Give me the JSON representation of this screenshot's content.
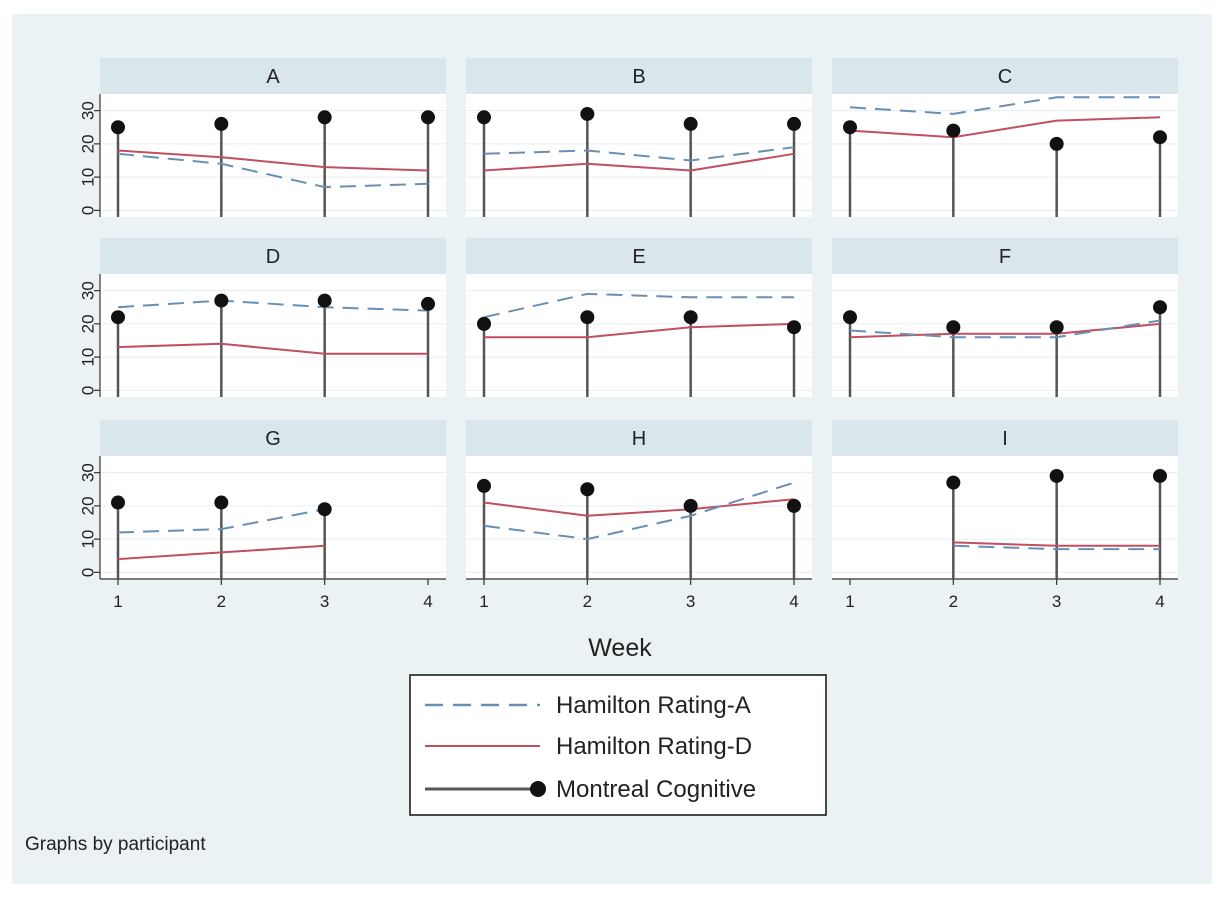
{
  "chart_data": {
    "type": "line",
    "note": "Graphs by participant",
    "xlabel": "Week",
    "x": [
      1,
      2,
      3,
      4
    ],
    "x_ticks": [
      "1",
      "2",
      "3",
      "4"
    ],
    "ylim": [
      -2,
      35
    ],
    "y_tick_values": [
      0,
      10,
      20,
      30
    ],
    "y_tick_labels": [
      "0",
      "10",
      "20",
      "30"
    ],
    "grid": true,
    "legend_position": "bottom-center",
    "colors": {
      "outer_background": "#eaf2f3",
      "plot_background": "#ffffff",
      "strip_background": "#d9e6eb",
      "hamilton_a": "#6a8fb5",
      "hamilton_d": "#c0505f",
      "montreal": "#555555",
      "marker": "#111111"
    },
    "legend": [
      {
        "label": "Hamilton Rating-A",
        "key": "hamilton_a",
        "style": "dashed"
      },
      {
        "label": "Hamilton Rating-D",
        "key": "hamilton_d",
        "style": "solid"
      },
      {
        "label": "Montreal Cognitive",
        "key": "montreal",
        "style": "spike-dot"
      }
    ],
    "panels": [
      {
        "name": "A",
        "hamilton_a": [
          17,
          14,
          7,
          8
        ],
        "hamilton_d": [
          18,
          16,
          13,
          12
        ],
        "montreal": [
          25,
          26,
          28,
          28
        ]
      },
      {
        "name": "B",
        "hamilton_a": [
          17,
          18,
          15,
          19
        ],
        "hamilton_d": [
          12,
          14,
          12,
          17
        ],
        "montreal": [
          28,
          29,
          26,
          26
        ]
      },
      {
        "name": "C",
        "hamilton_a": [
          31,
          29,
          34,
          34
        ],
        "hamilton_d": [
          24,
          22,
          27,
          28
        ],
        "montreal": [
          25,
          24,
          20,
          22
        ]
      },
      {
        "name": "D",
        "hamilton_a": [
          25,
          27,
          25,
          24
        ],
        "hamilton_d": [
          13,
          14,
          11,
          11
        ],
        "montreal": [
          22,
          27,
          27,
          26
        ]
      },
      {
        "name": "E",
        "hamilton_a": [
          22,
          29,
          28,
          28
        ],
        "hamilton_d": [
          16,
          16,
          19,
          20
        ],
        "montreal": [
          20,
          22,
          22,
          19
        ]
      },
      {
        "name": "F",
        "hamilton_a": [
          18,
          16,
          16,
          21
        ],
        "hamilton_d": [
          16,
          17,
          17,
          20
        ],
        "montreal": [
          22,
          19,
          19,
          25
        ]
      },
      {
        "name": "G",
        "hamilton_a": [
          12,
          13,
          19,
          null
        ],
        "hamilton_d": [
          4,
          6,
          8,
          null
        ],
        "montreal": [
          21,
          21,
          19,
          null
        ]
      },
      {
        "name": "H",
        "hamilton_a": [
          14,
          10,
          17,
          27
        ],
        "hamilton_d": [
          21,
          17,
          19,
          22
        ],
        "montreal": [
          26,
          25,
          20,
          20
        ]
      },
      {
        "name": "I",
        "hamilton_a": [
          null,
          8,
          7,
          7
        ],
        "hamilton_d": [
          null,
          9,
          8,
          8
        ],
        "montreal": [
          null,
          27,
          29,
          29
        ]
      }
    ]
  }
}
